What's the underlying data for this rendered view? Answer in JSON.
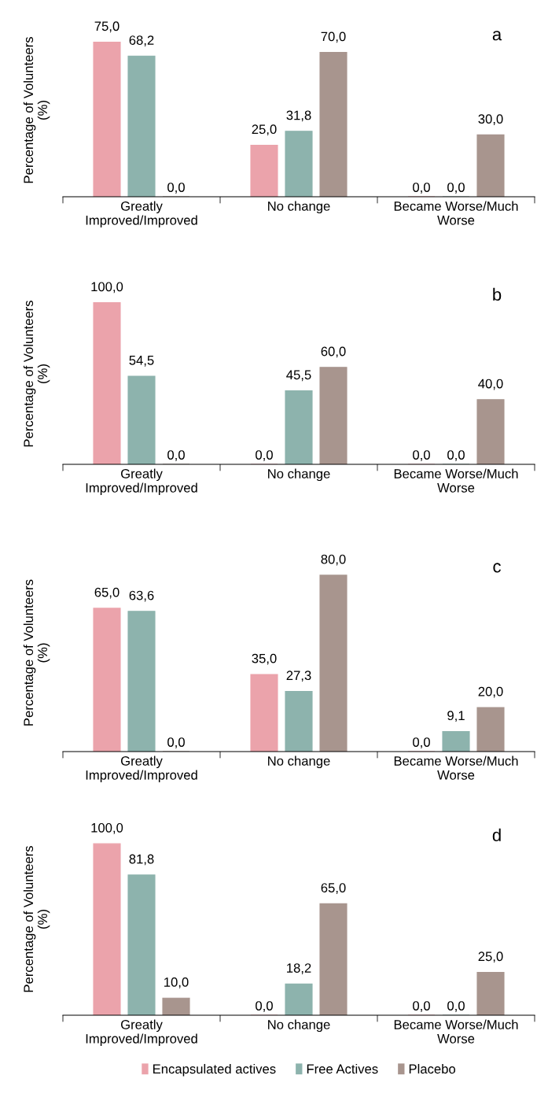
{
  "chart_data": [
    {
      "type": "bar",
      "ylabel": "Percentage of Volunteers\n(%)",
      "categories": [
        "Greatly\nImproved/Improved",
        "No change",
        "Became Worse/Much\nWorse"
      ],
      "tick_labels": "x",
      "annotations": [
        "a"
      ],
      "series": [
        {
          "color": "#eba3ab",
          "values": [
            75.0,
            25.0,
            0.0
          ],
          "value_labels": [
            "75,0",
            "25,0",
            "0,0"
          ]
        },
        {
          "color": "#8db3ad",
          "values": [
            68.2,
            31.8,
            0.0
          ],
          "value_labels": [
            "68,2",
            "31,8",
            "0,0"
          ]
        },
        {
          "color": "#a8958e",
          "values": [
            0.0,
            70.0,
            30.0
          ],
          "value_labels": [
            "0,0",
            "70,0",
            "30,0"
          ]
        }
      ]
    },
    {
      "type": "bar",
      "ylabel": "Percentage of Volunteers\n(%)",
      "categories": [
        "Greatly\nImproved/Improved",
        "No change",
        "Became Worse/Much\nWorse"
      ],
      "tick_labels": "x",
      "annotations": [
        "b"
      ],
      "series": [
        {
          "color": "#eba3ab",
          "values": [
            100.0,
            0.0,
            0.0
          ],
          "value_labels": [
            "100,0",
            "0,0",
            "0,0"
          ]
        },
        {
          "color": "#8db3ad",
          "values": [
            54.5,
            45.5,
            0.0
          ],
          "value_labels": [
            "54,5",
            "45,5",
            "0,0"
          ]
        },
        {
          "color": "#a8958e",
          "values": [
            0.0,
            60.0,
            40.0
          ],
          "value_labels": [
            "0,0",
            "60,0",
            "40,0"
          ]
        }
      ]
    },
    {
      "type": "bar",
      "ylabel": "Percentage of Volunteers\n(%)",
      "categories": [
        "Greatly\nImproved/Improved",
        "No change",
        "Became Worse/Much\nWorse"
      ],
      "tick_labels": "x",
      "annotations": [
        "c"
      ],
      "series": [
        {
          "color": "#eba3ab",
          "values": [
            65.0,
            35.0,
            0.0
          ],
          "value_labels": [
            "65,0",
            "35,0",
            "0,0"
          ]
        },
        {
          "color": "#8db3ad",
          "values": [
            63.6,
            27.3,
            9.1
          ],
          "value_labels": [
            "63,6",
            "27,3",
            "9,1"
          ]
        },
        {
          "color": "#a8958e",
          "values": [
            0.0,
            80.0,
            20.0
          ],
          "value_labels": [
            "0,0",
            "80,0",
            "20,0"
          ]
        }
      ]
    },
    {
      "type": "bar",
      "ylabel": "Percentage of Volunteers\n(%)",
      "categories": [
        "Greatly\nImproved/Improved",
        "No change",
        "Became Worse/Much\nWorse"
      ],
      "tick_labels": "x",
      "annotations": [
        "d"
      ],
      "legend": "bottom",
      "series": [
        {
          "name": "Encapsulated actives",
          "color": "#eba3ab",
          "values": [
            100.0,
            0.0,
            0.0
          ],
          "value_labels": [
            "100,0",
            "0,0",
            "0,0"
          ]
        },
        {
          "name": "Free Actives",
          "color": "#8db3ad",
          "values": [
            81.8,
            18.2,
            0.0
          ],
          "value_labels": [
            "81,8",
            "18,2",
            "0,0"
          ]
        },
        {
          "name": "Placebo",
          "color": "#a8958e",
          "values": [
            10.0,
            65.0,
            25.0
          ],
          "value_labels": [
            "10,0",
            "65,0",
            "25,0"
          ]
        }
      ]
    }
  ]
}
